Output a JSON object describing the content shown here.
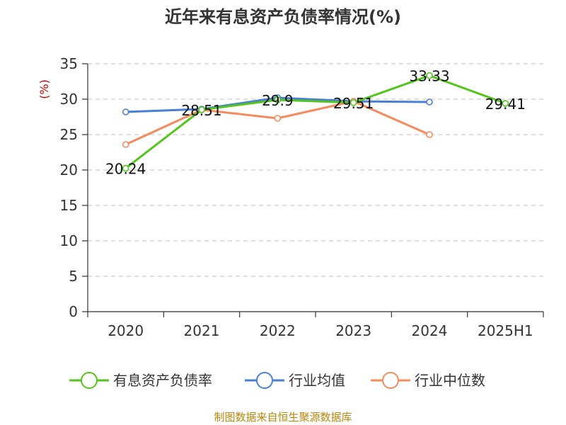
{
  "chart_data": {
    "type": "line",
    "title": "近年来有息资产负债率情况(%)",
    "ylabel": "(%)",
    "categories": [
      "2020",
      "2021",
      "2022",
      "2023",
      "2024",
      "2025H1"
    ],
    "ylim": [
      0,
      35
    ],
    "yticks": [
      0,
      5,
      10,
      15,
      20,
      25,
      30,
      35
    ],
    "grid": true,
    "legend_position": "bottom",
    "series": [
      {
        "name": "有息资产负债率",
        "color": "#52c41a",
        "values": [
          20.24,
          28.51,
          29.9,
          29.51,
          33.33,
          29.41
        ],
        "labels": [
          "20.24",
          "28.51",
          "29.9",
          "29.51",
          "33.33",
          "29.41"
        ]
      },
      {
        "name": "行业均值",
        "color": "#4a7fd8",
        "values": [
          28.2,
          28.6,
          30.2,
          29.7,
          29.6,
          null
        ]
      },
      {
        "name": "行业中位数",
        "color": "#f58a5c",
        "values": [
          23.6,
          28.5,
          27.3,
          29.7,
          25.0,
          null
        ]
      }
    ]
  },
  "source": "制图数据来自恒生聚源数据库"
}
